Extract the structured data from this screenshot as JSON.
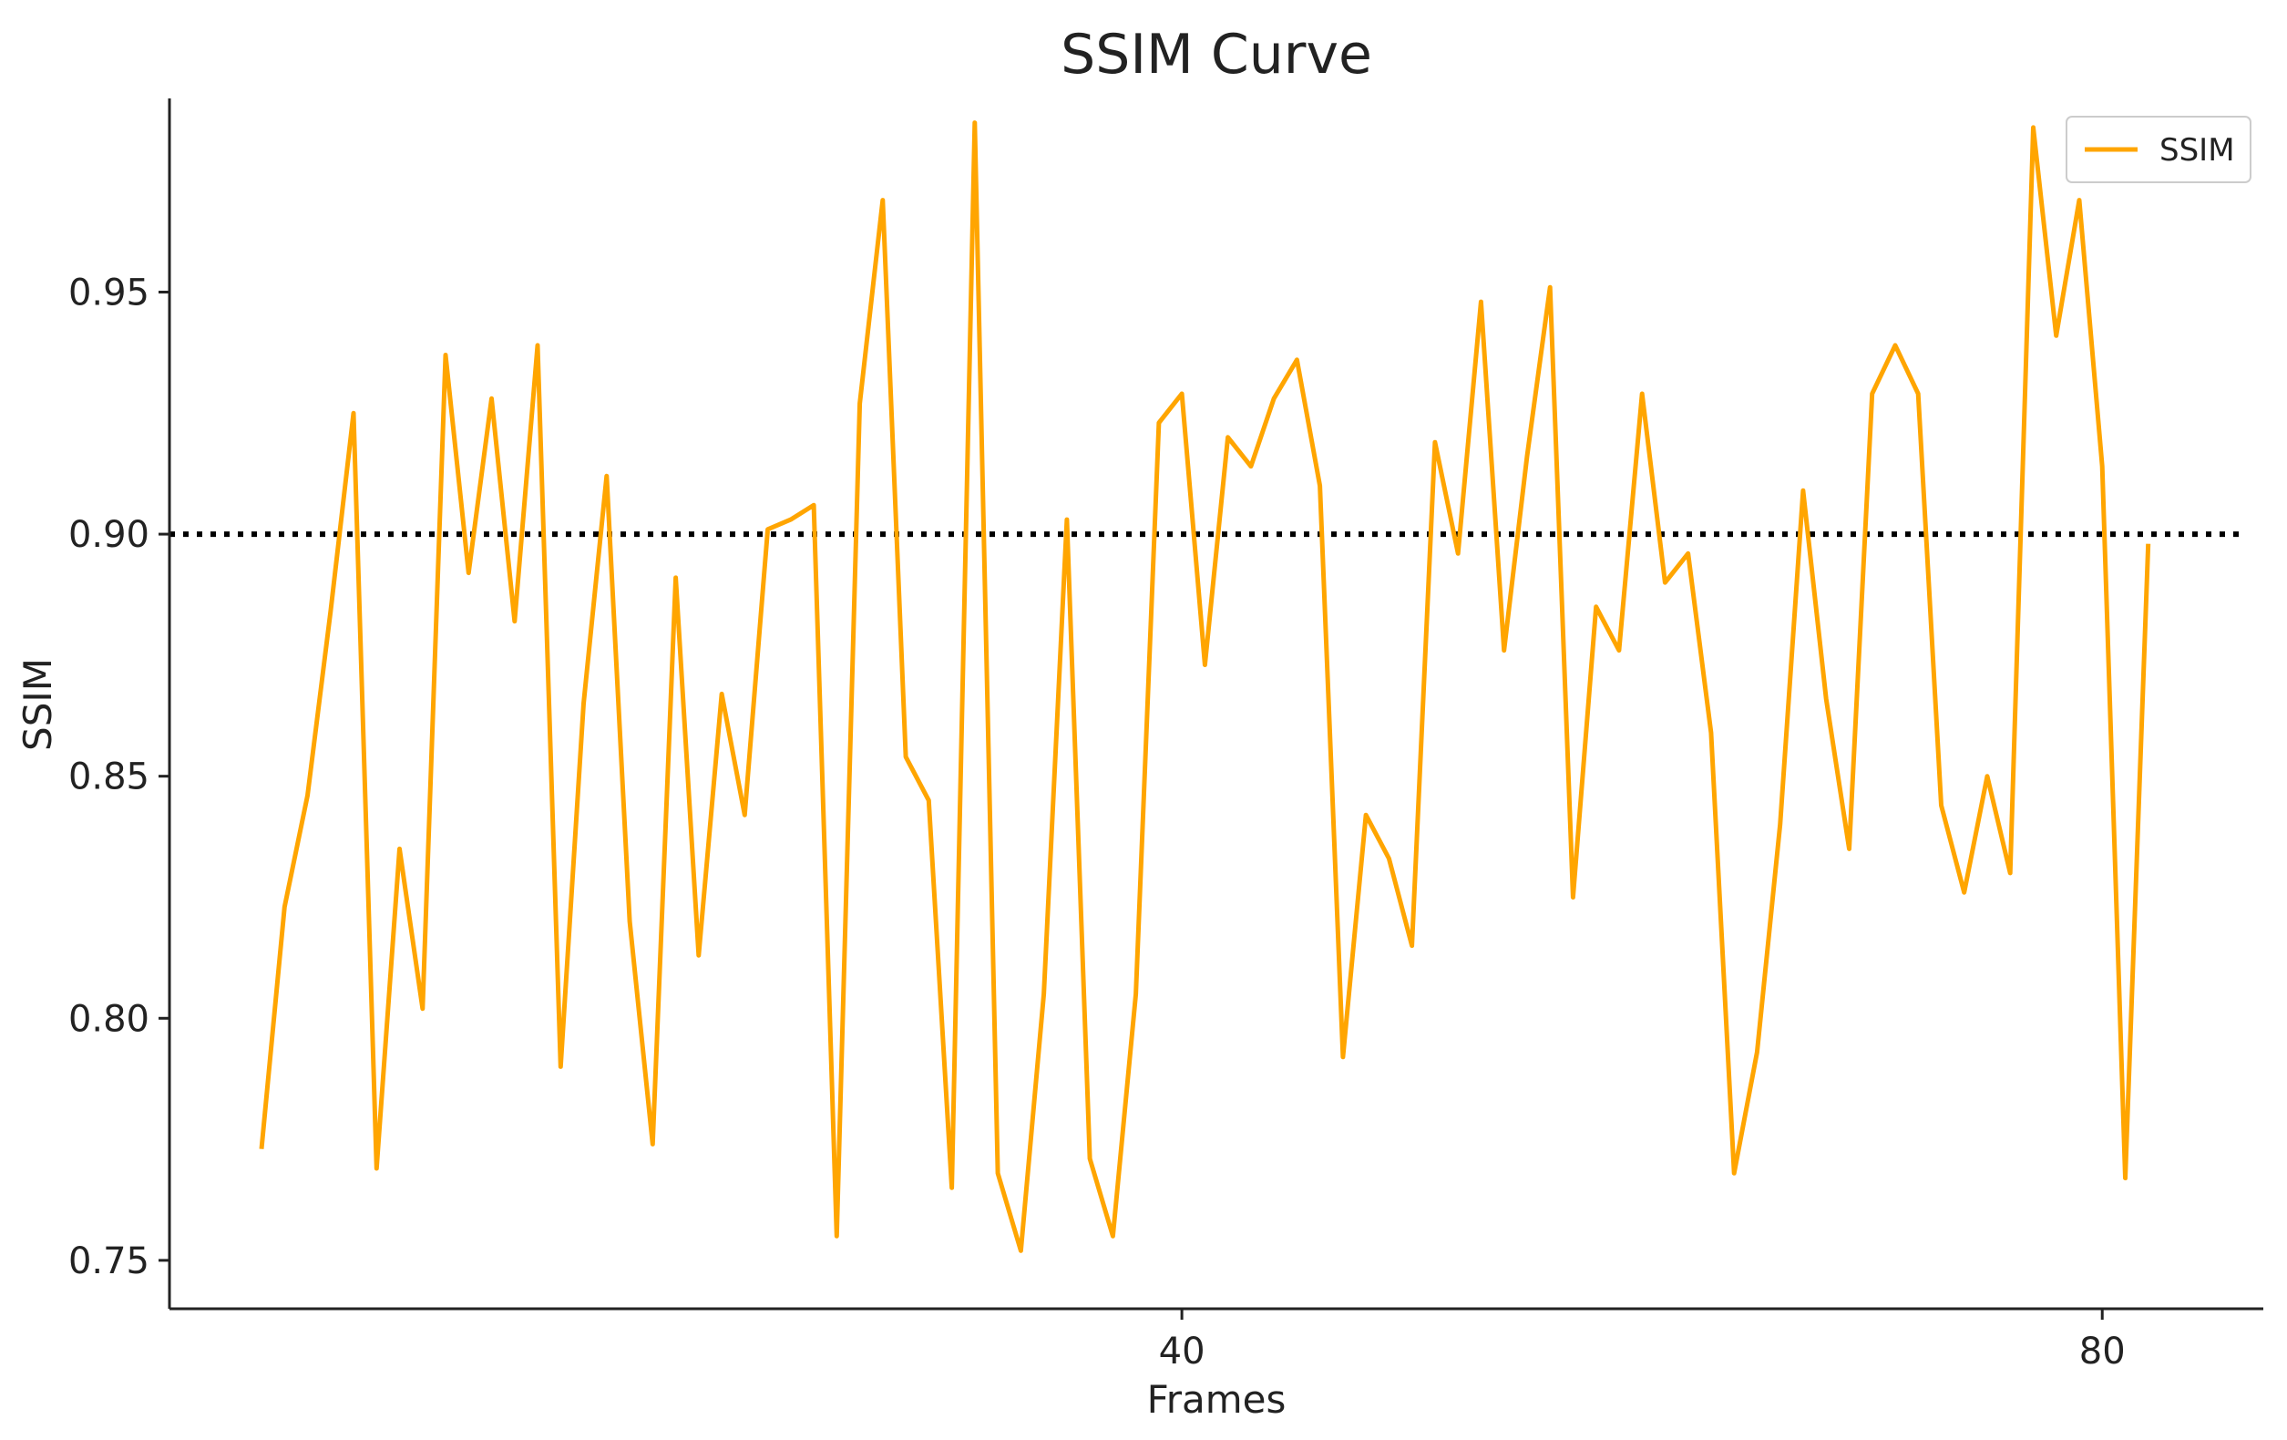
{
  "chart_data": {
    "type": "line",
    "title": "SSIM Curve",
    "xlabel": "Frames",
    "ylabel": "SSIM",
    "xlim": [
      -4,
      87
    ],
    "ylim": [
      0.74,
      0.99
    ],
    "xticks": [
      40,
      80
    ],
    "yticks": [
      0.75,
      0.8,
      0.85,
      0.9,
      0.95
    ],
    "ytick_labels": [
      "0.75",
      "0.80",
      "0.85",
      "0.90",
      "0.95"
    ],
    "xtick_labels": [
      "40",
      "80"
    ],
    "grid": false,
    "legend_position": "top-right",
    "threshold": 0.9,
    "colors": {
      "series": "#ffa500",
      "threshold": "#000000",
      "axis": "#222222"
    },
    "series": [
      {
        "name": "SSIM",
        "x": [
          0,
          1,
          2,
          3,
          4,
          5,
          6,
          7,
          8,
          9,
          10,
          11,
          12,
          13,
          14,
          15,
          16,
          17,
          18,
          19,
          20,
          21,
          22,
          23,
          24,
          25,
          26,
          27,
          28,
          29,
          30,
          31,
          32,
          33,
          34,
          35,
          36,
          37,
          38,
          39,
          40,
          41,
          42,
          43,
          44,
          45,
          46,
          47,
          48,
          49,
          50,
          51,
          52,
          53,
          54,
          55,
          56,
          57,
          58,
          59,
          60,
          61,
          62,
          63,
          64,
          65,
          66,
          67,
          68,
          69,
          70,
          71,
          72,
          73,
          74,
          75,
          76,
          77,
          78,
          79,
          80,
          81,
          82
        ],
        "values": [
          0.773,
          0.823,
          0.846,
          0.884,
          0.925,
          0.769,
          0.835,
          0.802,
          0.937,
          0.892,
          0.928,
          0.882,
          0.939,
          0.79,
          0.865,
          0.912,
          0.82,
          0.774,
          0.891,
          0.813,
          0.867,
          0.842,
          0.901,
          0.903,
          0.906,
          0.755,
          0.927,
          0.969,
          0.854,
          0.845,
          0.765,
          0.985,
          0.768,
          0.752,
          0.805,
          0.903,
          0.771,
          0.755,
          0.805,
          0.923,
          0.929,
          0.873,
          0.92,
          0.914,
          0.928,
          0.936,
          0.91,
          0.792,
          0.842,
          0.833,
          0.815,
          0.919,
          0.896,
          0.948,
          0.876,
          0.916,
          0.951,
          0.825,
          0.885,
          0.876,
          0.929,
          0.89,
          0.896,
          0.859,
          0.768,
          0.793,
          0.84,
          0.909,
          0.866,
          0.835,
          0.929,
          0.939,
          0.929,
          0.844,
          0.826,
          0.85,
          0.83,
          0.984,
          0.941,
          0.969,
          0.914,
          0.767,
          0.898
        ]
      }
    ]
  }
}
